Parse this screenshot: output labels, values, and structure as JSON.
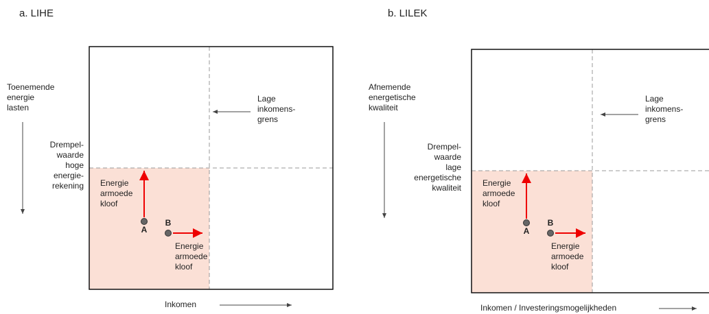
{
  "panels": [
    {
      "title": "a. LIHE",
      "y_axis_label": [
        "Toenemende",
        "energie",
        "lasten"
      ],
      "threshold_label": [
        "Drempel-",
        "waarde",
        "hoge",
        "energie-",
        "rekening"
      ],
      "income_limit_label": [
        "Lage",
        "inkomens-",
        "grens"
      ],
      "gap_label_vertical": [
        "Energie",
        "armoede",
        "kloof"
      ],
      "gap_label_horizontal": [
        "Energie",
        "armoede",
        "kloof"
      ],
      "point_a": "A",
      "point_b": "B",
      "x_axis_label": "Inkomen"
    },
    {
      "title": "b. LILEK",
      "y_axis_label": [
        "Afnemende",
        "energetische",
        "kwaliteit"
      ],
      "threshold_label": [
        "Drempel-",
        "waarde",
        "lage",
        "energetische",
        "kwaliteit"
      ],
      "income_limit_label": [
        "Lage",
        "inkomens-",
        "grens"
      ],
      "gap_label_vertical": [
        "Energie",
        "armoede",
        "kloof"
      ],
      "gap_label_horizontal": [
        "Energie",
        "armoede",
        "kloof"
      ],
      "point_a": "A",
      "point_b": "B",
      "x_axis_label": "Inkomen / Investeringsmogelijkheden"
    }
  ]
}
